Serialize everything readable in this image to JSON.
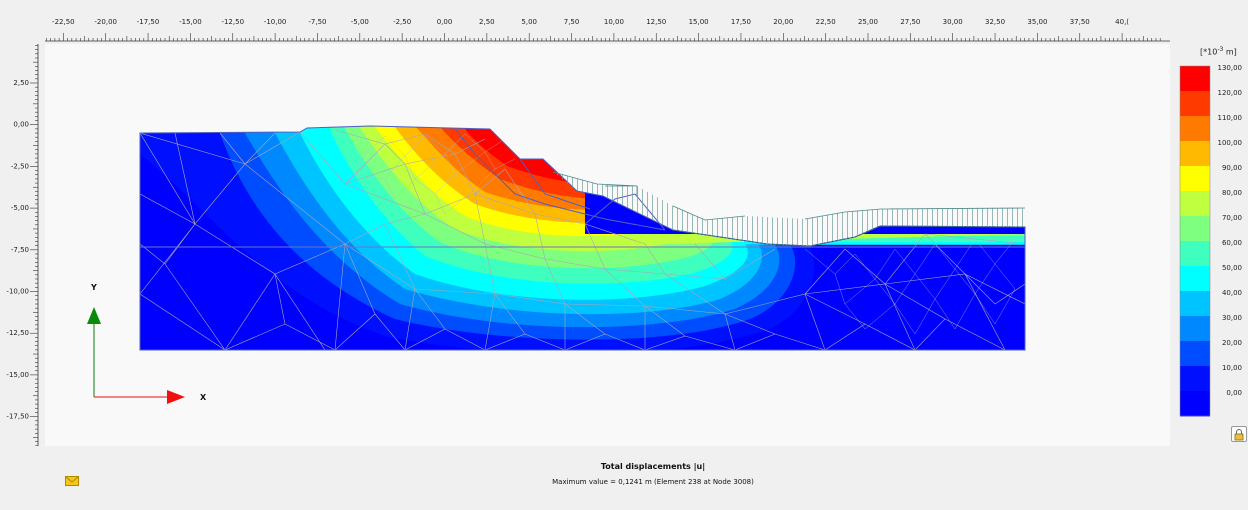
{
  "top_ruler": {
    "ticks": [
      "25,00",
      "-22,50",
      "-20,00",
      "-17,50",
      "-15,00",
      "-12,50",
      "-10,00",
      "-7,50",
      "-5,00",
      "-2,50",
      "0,00",
      "2,50",
      "5,00",
      "7,50",
      "10,00",
      "12,50",
      "15,00",
      "17,50",
      "20,00",
      "22,50",
      "25,00",
      "27,50",
      "30,00",
      "32,50",
      "35,00",
      "37,50",
      "40,("
    ]
  },
  "left_ruler": {
    "ticks": [
      "2,50",
      "0,00",
      "-2,50",
      "-5,00",
      "-7,50",
      "-10,00",
      "-12,50",
      "-15,00",
      "-17,50"
    ]
  },
  "axes": {
    "x_label": "X",
    "y_label": "Y"
  },
  "legend": {
    "unit_prefix": "[*10",
    "unit_exp": "-3",
    "unit_suffix": " m]",
    "levels": [
      {
        "label": "130,00",
        "color": "#ff0000"
      },
      {
        "label": "120,00",
        "color": "#ff3a00"
      },
      {
        "label": "110,00",
        "color": "#ff7a00"
      },
      {
        "label": "100,00",
        "color": "#ffba00"
      },
      {
        "label": "90,00",
        "color": "#ffff00"
      },
      {
        "label": "80,00",
        "color": "#bfff3f"
      },
      {
        "label": "70,00",
        "color": "#7fff7f"
      },
      {
        "label": "60,00",
        "color": "#3fffbf"
      },
      {
        "label": "50,00",
        "color": "#00ffff"
      },
      {
        "label": "40,00",
        "color": "#00c4ff"
      },
      {
        "label": "30,00",
        "color": "#0088ff"
      },
      {
        "label": "20,00",
        "color": "#004cff"
      },
      {
        "label": "10,00",
        "color": "#0010ff"
      },
      {
        "label": "0,00",
        "color": "#0000ff"
      }
    ]
  },
  "result": {
    "title": "Total displacements |u|",
    "max_value": "Maximum value = 0,1241 m (Element 238 at Node 3008)"
  },
  "icons": {
    "lock": "lock-icon",
    "mail": "envelope-icon"
  }
}
